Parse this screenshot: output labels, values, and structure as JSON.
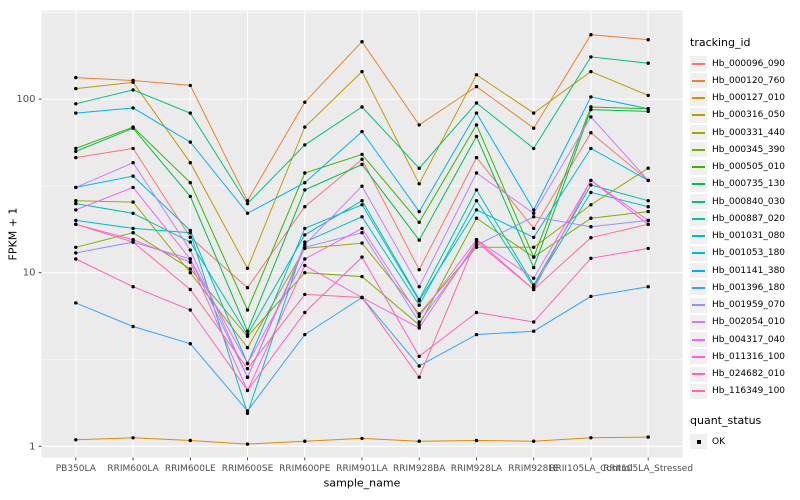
{
  "chart_data": {
    "type": "line",
    "title": "",
    "x_axis_label": "sample_name",
    "y_axis_label": "FPKM + 1",
    "y_scale": "log10",
    "ylim": [
      1,
      320
    ],
    "y_ticks": [
      1,
      10,
      100
    ],
    "grid": "white major+minor gridlines on gray panel",
    "legend_position": "right",
    "legend_titles": {
      "series": "tracking_id",
      "points": "quant_status"
    },
    "quant_status_items": [
      "OK"
    ],
    "colors": {
      "panel_bg": "#EBEBEB",
      "grid": "#FFFFFF",
      "tick_text": "#4D4D4D",
      "axis_text": "#000000",
      "point": "#000000",
      "legend_key_bg": "#F0F0F0"
    },
    "categories": [
      "PB350LA",
      "RRIM600LA",
      "RRIM600LE",
      "RRIM600SE",
      "RRIM600PE",
      "RRIM901LA",
      "RRIM928BA",
      "RRIM928LA",
      "RRIM928LE",
      "RRII105LA_Control",
      "RRII105LA_Stressed"
    ],
    "series": [
      {
        "name": "Hb_000096_090",
        "color": "#F8766D",
        "values": [
          46,
          52,
          16,
          8.2,
          24,
          45,
          10.4,
          46,
          18,
          64,
          34
        ]
      },
      {
        "name": "Hb_000120_760",
        "color": "#EA8331",
        "values": [
          133,
          128,
          120,
          26,
          96,
          214,
          71,
          118,
          68,
          235,
          220
        ]
      },
      {
        "name": "Hb_000127_010",
        "color": "#D89000",
        "values": [
          1.09,
          1.12,
          1.08,
          1.03,
          1.07,
          1.11,
          1.07,
          1.08,
          1.07,
          1.12,
          1.13
        ]
      },
      {
        "name": "Hb_000316_050",
        "color": "#C09B00",
        "values": [
          115,
          125,
          43,
          10.6,
          69,
          144,
          32.5,
          138,
          83,
          144,
          105
        ]
      },
      {
        "name": "Hb_000331_440",
        "color": "#A3A500",
        "values": [
          26,
          25.5,
          10,
          3.7,
          13.8,
          14.8,
          5.8,
          14,
          14,
          24.6,
          40
        ]
      },
      {
        "name": "Hb_000345_390",
        "color": "#7CAE00",
        "values": [
          14,
          17,
          10.5,
          4.3,
          10,
          9.5,
          5.0,
          20.6,
          12.3,
          20.6,
          22.5
        ]
      },
      {
        "name": "Hb_000505_010",
        "color": "#39B600",
        "values": [
          52,
          69,
          33,
          6.1,
          37.5,
          48,
          19.5,
          71,
          12.3,
          90,
          88
        ]
      },
      {
        "name": "Hb_000735_130",
        "color": "#00BB4E",
        "values": [
          50,
          68,
          27.5,
          4.6,
          30,
          42,
          15.4,
          61,
          10.7,
          87,
          85
        ]
      },
      {
        "name": "Hb_000840_030",
        "color": "#00BF7D",
        "values": [
          94,
          113,
          83,
          25,
          54.5,
          90,
          40,
          95,
          52,
          175,
          161
        ]
      },
      {
        "name": "Hb_000887_020",
        "color": "#00C1A3",
        "values": [
          25,
          22,
          15,
          4.4,
          16.5,
          26,
          7.0,
          30,
          8.5,
          32,
          26
        ]
      },
      {
        "name": "Hb_001031_080",
        "color": "#00BFC4",
        "values": [
          20,
          18,
          17,
          1.55,
          15,
          21,
          6.5,
          26,
          8.3,
          29,
          24
        ]
      },
      {
        "name": "Hb_001053_180",
        "color": "#00BAE0",
        "values": [
          31,
          36,
          17.5,
          3.0,
          18,
          24.6,
          6.9,
          23,
          16,
          52,
          34
        ]
      },
      {
        "name": "Hb_001141_380",
        "color": "#00B0F6",
        "values": [
          83,
          89,
          56.5,
          22,
          33,
          65,
          22.5,
          83,
          23,
          103,
          88
        ]
      },
      {
        "name": "Hb_001396_180",
        "color": "#35A2FF",
        "values": [
          6.7,
          4.9,
          3.9,
          1.6,
          4.4,
          7.2,
          2.9,
          4.4,
          4.6,
          7.3,
          8.3
        ]
      },
      {
        "name": "Hb_001959_070",
        "color": "#9590FF",
        "values": [
          13,
          15,
          12,
          2.5,
          14,
          17,
          5.2,
          14.4,
          21,
          18.4,
          20
        ]
      },
      {
        "name": "Hb_002054_010",
        "color": "#C77CFF",
        "values": [
          31,
          43,
          13.5,
          2.5,
          14.5,
          31.5,
          8.3,
          37.5,
          22,
          79,
          34
        ]
      },
      {
        "name": "Hb_004317_040",
        "color": "#E76BF3",
        "values": [
          23,
          31,
          12,
          3.0,
          12,
          18,
          5.6,
          15.5,
          9.3,
          34,
          20
        ]
      },
      {
        "name": "Hb_011316_100",
        "color": "#FA62DB",
        "values": [
          19,
          15.5,
          11.5,
          2.1,
          11,
          7.2,
          4.8,
          15,
          8.0,
          34,
          19
        ]
      },
      {
        "name": "Hb_024682_010",
        "color": "#FF62BC",
        "values": [
          12,
          8.3,
          6.1,
          2.1,
          5.9,
          12.3,
          3.3,
          5.9,
          5.2,
          12.1,
          13.8
        ]
      },
      {
        "name": "Hb_116349_100",
        "color": "#FF6A98",
        "values": [
          19,
          15,
          8.0,
          2.8,
          7.5,
          7.2,
          2.5,
          15.5,
          8.0,
          15.9,
          19
        ]
      }
    ]
  }
}
